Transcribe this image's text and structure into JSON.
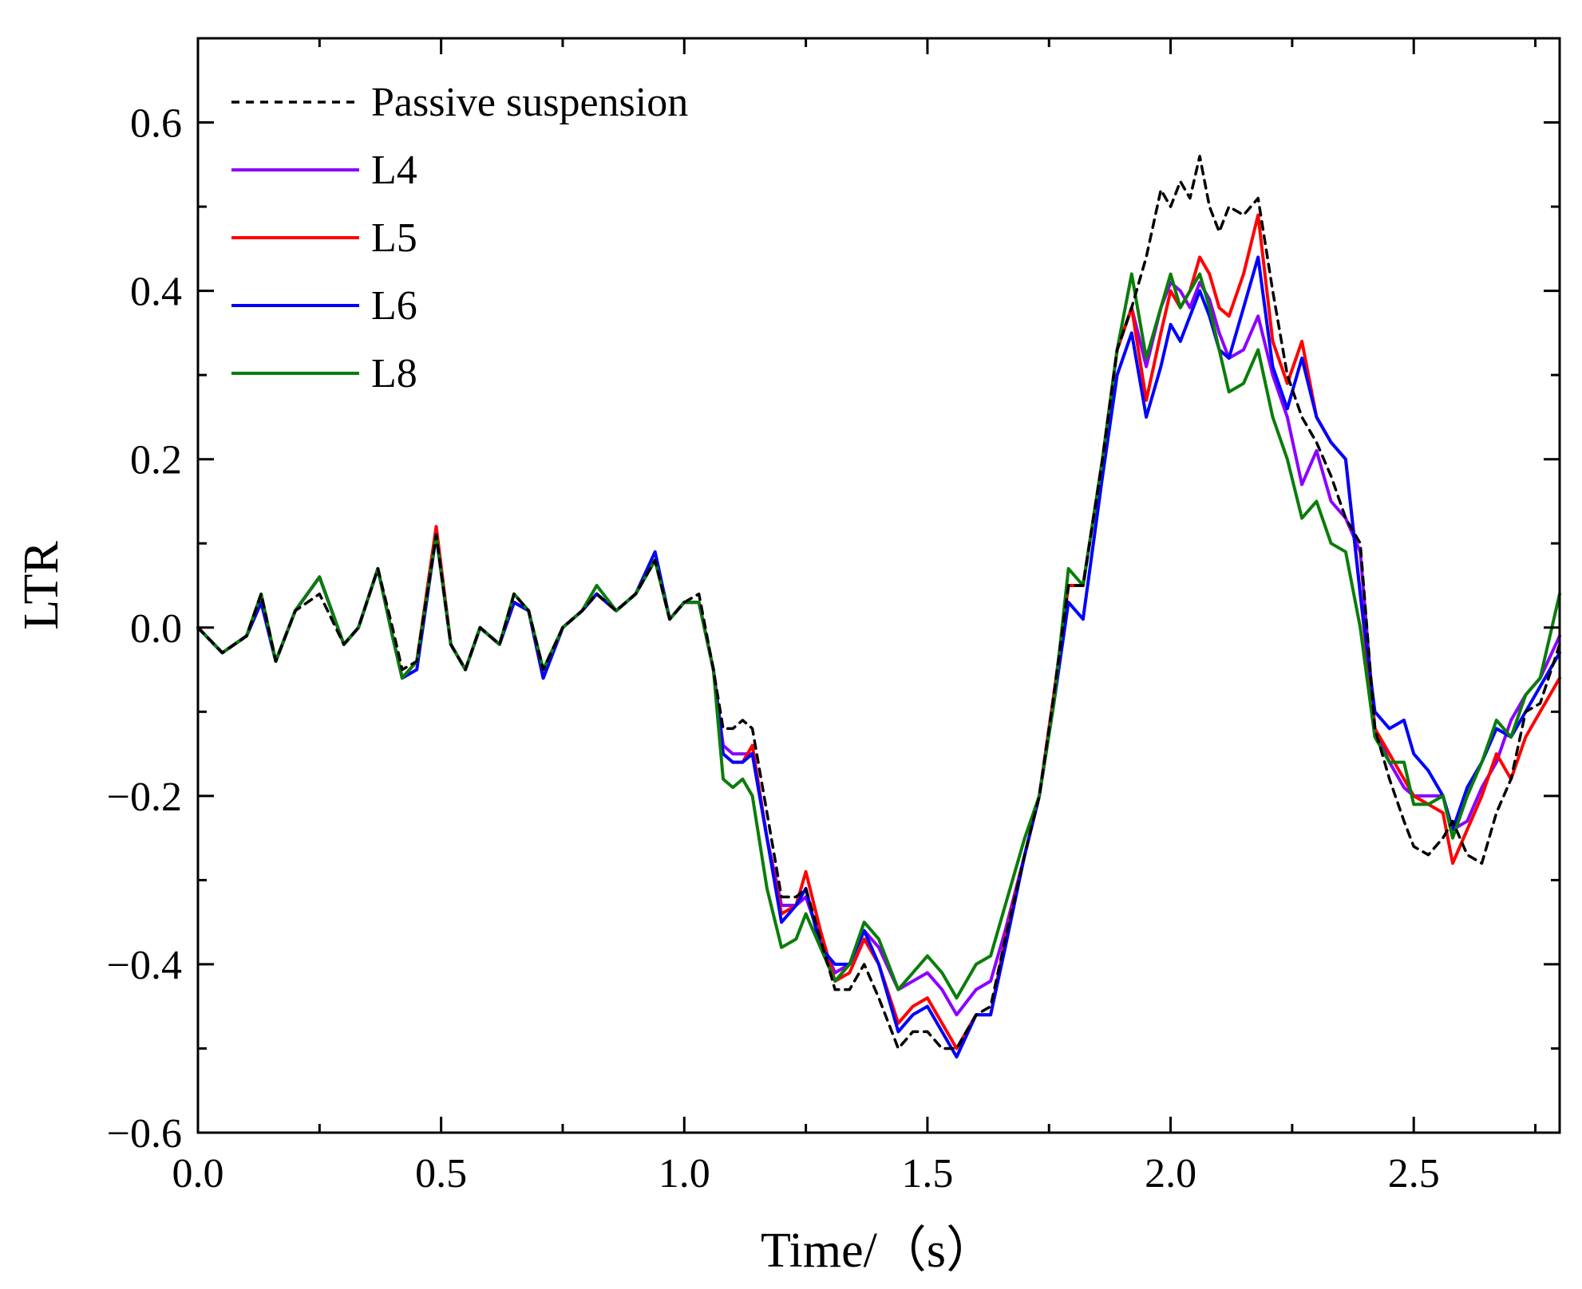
{
  "chart_data": {
    "type": "line",
    "xlabel": "Time/（s）",
    "ylabel": "LTR",
    "xlim": [
      0.0,
      2.8
    ],
    "ylim": [
      -0.6,
      0.7
    ],
    "x_ticks": [
      0.0,
      0.5,
      1.0,
      1.5,
      2.0,
      2.5
    ],
    "x_tick_labels": [
      "0.0",
      "0.5",
      "1.0",
      "1.5",
      "2.0",
      "2.5"
    ],
    "y_ticks": [
      -0.6,
      -0.4,
      -0.2,
      0.0,
      0.2,
      0.4,
      0.6
    ],
    "y_tick_labels": [
      "−0.6",
      "−0.4",
      "−0.2",
      "0.0",
      "0.2",
      "0.4",
      "0.6"
    ],
    "grid": false,
    "legend_position": "top-left",
    "series": [
      {
        "name": "Passive suspension",
        "color": "#000000",
        "dashed": true,
        "x": [
          0.0,
          0.05,
          0.1,
          0.13,
          0.16,
          0.2,
          0.25,
          0.3,
          0.33,
          0.37,
          0.4,
          0.42,
          0.45,
          0.49,
          0.52,
          0.55,
          0.58,
          0.62,
          0.65,
          0.68,
          0.71,
          0.75,
          0.79,
          0.82,
          0.86,
          0.9,
          0.94,
          0.97,
          1.0,
          1.03,
          1.06,
          1.08,
          1.1,
          1.12,
          1.14,
          1.17,
          1.2,
          1.23,
          1.25,
          1.28,
          1.31,
          1.34,
          1.37,
          1.4,
          1.44,
          1.47,
          1.5,
          1.53,
          1.56,
          1.6,
          1.63,
          1.66,
          1.7,
          1.73,
          1.76,
          1.79,
          1.82,
          1.86,
          1.89,
          1.92,
          1.95,
          1.98,
          2.0,
          2.02,
          2.04,
          2.06,
          2.08,
          2.1,
          2.12,
          2.15,
          2.18,
          2.21,
          2.24,
          2.27,
          2.3,
          2.33,
          2.36,
          2.39,
          2.42,
          2.45,
          2.48,
          2.5,
          2.53,
          2.56,
          2.58,
          2.61,
          2.64,
          2.67,
          2.7,
          2.73,
          2.76,
          2.8
        ],
        "values": [
          0.0,
          -0.03,
          -0.01,
          0.04,
          -0.04,
          0.02,
          0.04,
          -0.02,
          0.0,
          0.07,
          0.0,
          -0.05,
          -0.04,
          0.11,
          -0.02,
          -0.05,
          0.0,
          -0.02,
          0.04,
          0.02,
          -0.05,
          0.0,
          0.02,
          0.04,
          0.02,
          0.04,
          0.08,
          0.01,
          0.03,
          0.04,
          -0.05,
          -0.12,
          -0.12,
          -0.11,
          -0.12,
          -0.22,
          -0.32,
          -0.32,
          -0.31,
          -0.37,
          -0.43,
          -0.43,
          -0.4,
          -0.44,
          -0.5,
          -0.48,
          -0.48,
          -0.5,
          -0.5,
          -0.46,
          -0.45,
          -0.37,
          -0.27,
          -0.2,
          -0.08,
          0.05,
          0.05,
          0.2,
          0.33,
          0.38,
          0.44,
          0.52,
          0.5,
          0.53,
          0.51,
          0.56,
          0.5,
          0.47,
          0.5,
          0.49,
          0.51,
          0.4,
          0.3,
          0.25,
          0.22,
          0.18,
          0.13,
          0.1,
          -0.12,
          -0.18,
          -0.23,
          -0.26,
          -0.27,
          -0.25,
          -0.23,
          -0.27,
          -0.28,
          -0.22,
          -0.18,
          -0.1,
          -0.09,
          -0.02
        ]
      },
      {
        "name": "L4",
        "color": "#8b00ff",
        "dashed": false,
        "x": [
          0.0,
          0.05,
          0.1,
          0.13,
          0.16,
          0.2,
          0.25,
          0.3,
          0.33,
          0.37,
          0.4,
          0.42,
          0.45,
          0.49,
          0.52,
          0.55,
          0.58,
          0.62,
          0.65,
          0.68,
          0.71,
          0.75,
          0.79,
          0.82,
          0.86,
          0.9,
          0.94,
          0.97,
          1.0,
          1.03,
          1.06,
          1.08,
          1.1,
          1.12,
          1.14,
          1.17,
          1.2,
          1.23,
          1.25,
          1.28,
          1.31,
          1.34,
          1.37,
          1.4,
          1.44,
          1.47,
          1.5,
          1.53,
          1.56,
          1.6,
          1.63,
          1.66,
          1.7,
          1.73,
          1.76,
          1.79,
          1.82,
          1.86,
          1.89,
          1.92,
          1.95,
          1.98,
          2.0,
          2.02,
          2.04,
          2.06,
          2.08,
          2.1,
          2.12,
          2.15,
          2.18,
          2.21,
          2.24,
          2.27,
          2.3,
          2.33,
          2.36,
          2.39,
          2.42,
          2.45,
          2.48,
          2.5,
          2.53,
          2.56,
          2.58,
          2.61,
          2.64,
          2.67,
          2.7,
          2.73,
          2.76,
          2.8
        ],
        "values": [
          0.0,
          -0.03,
          -0.01,
          0.03,
          -0.04,
          0.02,
          0.06,
          -0.02,
          0.0,
          0.07,
          -0.01,
          -0.06,
          -0.04,
          0.11,
          -0.02,
          -0.05,
          0.0,
          -0.02,
          0.03,
          0.02,
          -0.06,
          0.0,
          0.02,
          0.04,
          0.02,
          0.04,
          0.08,
          0.01,
          0.03,
          0.03,
          -0.05,
          -0.14,
          -0.15,
          -0.15,
          -0.15,
          -0.25,
          -0.33,
          -0.33,
          -0.32,
          -0.37,
          -0.41,
          -0.4,
          -0.36,
          -0.38,
          -0.43,
          -0.42,
          -0.41,
          -0.43,
          -0.46,
          -0.43,
          -0.42,
          -0.36,
          -0.27,
          -0.2,
          -0.08,
          0.05,
          0.05,
          0.2,
          0.33,
          0.38,
          0.31,
          0.38,
          0.41,
          0.4,
          0.38,
          0.41,
          0.39,
          0.35,
          0.32,
          0.33,
          0.37,
          0.3,
          0.25,
          0.17,
          0.21,
          0.15,
          0.13,
          0.09,
          -0.12,
          -0.16,
          -0.19,
          -0.2,
          -0.2,
          -0.2,
          -0.24,
          -0.23,
          -0.19,
          -0.16,
          -0.11,
          -0.08,
          -0.06,
          -0.01
        ]
      },
      {
        "name": "L5",
        "color": "#ff0000",
        "dashed": false,
        "x": [
          0.0,
          0.05,
          0.1,
          0.13,
          0.16,
          0.2,
          0.25,
          0.3,
          0.33,
          0.37,
          0.4,
          0.42,
          0.45,
          0.49,
          0.52,
          0.55,
          0.58,
          0.62,
          0.65,
          0.68,
          0.71,
          0.75,
          0.79,
          0.82,
          0.86,
          0.9,
          0.94,
          0.97,
          1.0,
          1.03,
          1.06,
          1.08,
          1.1,
          1.12,
          1.14,
          1.17,
          1.2,
          1.23,
          1.25,
          1.28,
          1.31,
          1.34,
          1.37,
          1.4,
          1.44,
          1.47,
          1.5,
          1.53,
          1.56,
          1.6,
          1.63,
          1.66,
          1.7,
          1.73,
          1.76,
          1.79,
          1.82,
          1.86,
          1.89,
          1.92,
          1.95,
          1.98,
          2.0,
          2.02,
          2.04,
          2.06,
          2.08,
          2.1,
          2.12,
          2.15,
          2.18,
          2.21,
          2.24,
          2.27,
          2.3,
          2.33,
          2.36,
          2.39,
          2.42,
          2.45,
          2.48,
          2.5,
          2.53,
          2.56,
          2.58,
          2.61,
          2.64,
          2.67,
          2.7,
          2.73,
          2.76,
          2.8
        ],
        "values": [
          0.0,
          -0.03,
          -0.01,
          0.03,
          -0.04,
          0.02,
          0.06,
          -0.02,
          0.0,
          0.07,
          -0.01,
          -0.06,
          -0.04,
          0.12,
          -0.02,
          -0.05,
          0.0,
          -0.02,
          0.03,
          0.02,
          -0.06,
          0.0,
          0.02,
          0.04,
          0.02,
          0.04,
          0.08,
          0.01,
          0.03,
          0.03,
          -0.05,
          -0.15,
          -0.16,
          -0.16,
          -0.14,
          -0.25,
          -0.34,
          -0.33,
          -0.29,
          -0.36,
          -0.42,
          -0.41,
          -0.37,
          -0.4,
          -0.47,
          -0.45,
          -0.44,
          -0.47,
          -0.5,
          -0.46,
          -0.46,
          -0.37,
          -0.27,
          -0.2,
          -0.08,
          0.05,
          0.05,
          0.2,
          0.33,
          0.38,
          0.27,
          0.35,
          0.4,
          0.38,
          0.4,
          0.44,
          0.42,
          0.38,
          0.37,
          0.42,
          0.49,
          0.34,
          0.29,
          0.34,
          0.25,
          0.22,
          0.2,
          0.04,
          -0.12,
          -0.15,
          -0.18,
          -0.2,
          -0.21,
          -0.22,
          -0.28,
          -0.24,
          -0.2,
          -0.15,
          -0.18,
          -0.13,
          -0.1,
          -0.06
        ]
      },
      {
        "name": "L6",
        "color": "#0000ff",
        "dashed": false,
        "x": [
          0.0,
          0.05,
          0.1,
          0.13,
          0.16,
          0.2,
          0.25,
          0.3,
          0.33,
          0.37,
          0.4,
          0.42,
          0.45,
          0.49,
          0.52,
          0.55,
          0.58,
          0.62,
          0.65,
          0.68,
          0.71,
          0.75,
          0.79,
          0.82,
          0.86,
          0.9,
          0.94,
          0.97,
          1.0,
          1.03,
          1.06,
          1.08,
          1.1,
          1.12,
          1.14,
          1.17,
          1.2,
          1.23,
          1.25,
          1.28,
          1.31,
          1.34,
          1.37,
          1.4,
          1.44,
          1.47,
          1.5,
          1.53,
          1.56,
          1.6,
          1.63,
          1.66,
          1.7,
          1.73,
          1.76,
          1.79,
          1.82,
          1.86,
          1.89,
          1.92,
          1.95,
          1.98,
          2.0,
          2.02,
          2.04,
          2.06,
          2.08,
          2.1,
          2.12,
          2.15,
          2.18,
          2.21,
          2.24,
          2.27,
          2.3,
          2.33,
          2.36,
          2.39,
          2.42,
          2.45,
          2.48,
          2.5,
          2.53,
          2.56,
          2.58,
          2.61,
          2.64,
          2.67,
          2.7,
          2.73,
          2.76,
          2.8
        ],
        "values": [
          0.0,
          -0.03,
          -0.01,
          0.03,
          -0.04,
          0.02,
          0.06,
          -0.02,
          0.0,
          0.07,
          -0.01,
          -0.06,
          -0.05,
          0.11,
          -0.02,
          -0.05,
          0.0,
          -0.02,
          0.03,
          0.02,
          -0.06,
          0.0,
          0.02,
          0.04,
          0.02,
          0.04,
          0.09,
          0.01,
          0.03,
          0.03,
          -0.05,
          -0.15,
          -0.16,
          -0.16,
          -0.15,
          -0.25,
          -0.35,
          -0.33,
          -0.31,
          -0.38,
          -0.4,
          -0.4,
          -0.36,
          -0.4,
          -0.48,
          -0.46,
          -0.45,
          -0.48,
          -0.51,
          -0.46,
          -0.46,
          -0.38,
          -0.27,
          -0.2,
          -0.09,
          0.03,
          0.01,
          0.18,
          0.3,
          0.35,
          0.25,
          0.31,
          0.36,
          0.34,
          0.37,
          0.4,
          0.37,
          0.33,
          0.32,
          0.38,
          0.44,
          0.31,
          0.26,
          0.32,
          0.25,
          0.22,
          0.2,
          0.04,
          -0.1,
          -0.12,
          -0.11,
          -0.15,
          -0.17,
          -0.2,
          -0.24,
          -0.19,
          -0.16,
          -0.12,
          -0.13,
          -0.1,
          -0.07,
          -0.03
        ]
      },
      {
        "name": "L8",
        "color": "#0a7d0a",
        "dashed": false,
        "x": [
          0.0,
          0.05,
          0.1,
          0.13,
          0.16,
          0.2,
          0.25,
          0.3,
          0.33,
          0.37,
          0.4,
          0.42,
          0.45,
          0.49,
          0.52,
          0.55,
          0.58,
          0.62,
          0.65,
          0.68,
          0.71,
          0.75,
          0.79,
          0.82,
          0.86,
          0.9,
          0.94,
          0.97,
          1.0,
          1.03,
          1.06,
          1.08,
          1.1,
          1.12,
          1.14,
          1.17,
          1.2,
          1.23,
          1.25,
          1.28,
          1.31,
          1.34,
          1.37,
          1.4,
          1.44,
          1.47,
          1.5,
          1.53,
          1.56,
          1.6,
          1.63,
          1.66,
          1.7,
          1.73,
          1.76,
          1.79,
          1.82,
          1.86,
          1.89,
          1.92,
          1.95,
          1.98,
          2.0,
          2.02,
          2.04,
          2.06,
          2.08,
          2.1,
          2.12,
          2.15,
          2.18,
          2.21,
          2.24,
          2.27,
          2.3,
          2.33,
          2.36,
          2.39,
          2.42,
          2.45,
          2.48,
          2.5,
          2.53,
          2.56,
          2.58,
          2.61,
          2.64,
          2.67,
          2.7,
          2.73,
          2.76,
          2.8
        ],
        "values": [
          0.0,
          -0.03,
          -0.01,
          0.04,
          -0.04,
          0.02,
          0.06,
          -0.02,
          0.0,
          0.07,
          -0.01,
          -0.06,
          -0.04,
          0.11,
          -0.02,
          -0.05,
          0.0,
          -0.02,
          0.04,
          0.02,
          -0.05,
          0.0,
          0.02,
          0.05,
          0.02,
          0.04,
          0.08,
          0.01,
          0.03,
          0.03,
          -0.05,
          -0.18,
          -0.19,
          -0.18,
          -0.2,
          -0.31,
          -0.38,
          -0.37,
          -0.34,
          -0.38,
          -0.42,
          -0.4,
          -0.35,
          -0.37,
          -0.43,
          -0.41,
          -0.39,
          -0.41,
          -0.44,
          -0.4,
          -0.39,
          -0.33,
          -0.25,
          -0.2,
          -0.09,
          0.07,
          0.05,
          0.2,
          0.33,
          0.42,
          0.32,
          0.38,
          0.42,
          0.38,
          0.4,
          0.42,
          0.38,
          0.33,
          0.28,
          0.29,
          0.33,
          0.25,
          0.2,
          0.13,
          0.15,
          0.1,
          0.09,
          0.0,
          -0.13,
          -0.16,
          -0.16,
          -0.21,
          -0.21,
          -0.2,
          -0.25,
          -0.2,
          -0.16,
          -0.11,
          -0.13,
          -0.08,
          -0.06,
          0.04
        ]
      }
    ]
  }
}
